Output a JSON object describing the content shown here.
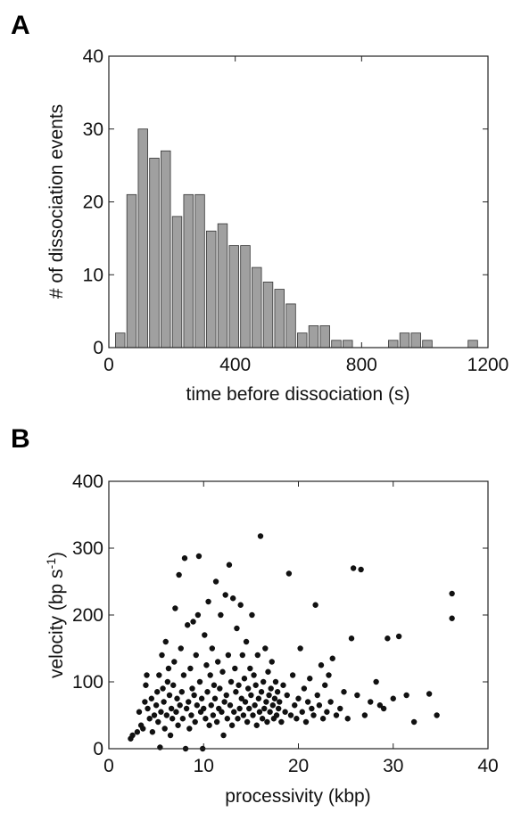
{
  "chart_data": [
    {
      "panel": "A",
      "type": "bar",
      "xlabel": "time before dissociation (s)",
      "ylabel": "# of dissociation events",
      "xlim": [
        0,
        1200
      ],
      "ylim": [
        0,
        40
      ],
      "xticks": [
        0,
        400,
        800,
        1200
      ],
      "yticks": [
        0,
        10,
        20,
        30,
        40
      ],
      "bin_width": 36,
      "bin_centers": [
        36,
        72,
        108,
        144,
        180,
        216,
        252,
        288,
        324,
        360,
        396,
        432,
        468,
        504,
        540,
        576,
        612,
        648,
        684,
        720,
        756,
        792,
        828,
        864,
        900,
        936,
        972,
        1008,
        1044,
        1080,
        1116,
        1152
      ],
      "values": [
        2,
        21,
        30,
        26,
        27,
        18,
        21,
        21,
        16,
        17,
        14,
        14,
        11,
        9,
        8,
        6,
        2,
        3,
        3,
        1,
        1,
        0,
        0,
        0,
        1,
        2,
        2,
        1,
        0,
        0,
        0,
        1
      ]
    },
    {
      "panel": "B",
      "type": "scatter",
      "xlabel": "processivity (kbp)",
      "ylabel": "velocity (bp s",
      "ylabel_sup": "-1",
      "ylabel_end": ")",
      "xlim": [
        0,
        40
      ],
      "ylim": [
        0,
        400
      ],
      "xticks": [
        0,
        10,
        20,
        30,
        40
      ],
      "yticks": [
        0,
        100,
        200,
        300,
        400
      ],
      "points": [
        [
          2.3,
          15
        ],
        [
          2.5,
          20
        ],
        [
          3,
          25
        ],
        [
          3.2,
          55
        ],
        [
          3.4,
          35
        ],
        [
          3.6,
          30
        ],
        [
          3.8,
          70
        ],
        [
          3.9,
          95
        ],
        [
          4,
          110
        ],
        [
          4.1,
          60
        ],
        [
          4.3,
          45
        ],
        [
          4.5,
          75
        ],
        [
          4.6,
          25
        ],
        [
          4.8,
          50
        ],
        [
          5,
          65
        ],
        [
          5.1,
          85
        ],
        [
          5.2,
          40
        ],
        [
          5.3,
          110
        ],
        [
          5.4,
          2
        ],
        [
          5.5,
          55
        ],
        [
          5.6,
          140
        ],
        [
          5.7,
          90
        ],
        [
          5.8,
          70
        ],
        [
          5.9,
          30
        ],
        [
          6,
          160
        ],
        [
          6.1,
          50
        ],
        [
          6.2,
          100
        ],
        [
          6.3,
          120
        ],
        [
          6.4,
          80
        ],
        [
          6.5,
          20
        ],
        [
          6.6,
          60
        ],
        [
          6.7,
          45
        ],
        [
          6.8,
          95
        ],
        [
          6.9,
          130
        ],
        [
          7,
          210
        ],
        [
          7.1,
          55
        ],
        [
          7.2,
          75
        ],
        [
          7.3,
          35
        ],
        [
          7.4,
          260
        ],
        [
          7.5,
          65
        ],
        [
          7.6,
          150
        ],
        [
          7.7,
          85
        ],
        [
          7.8,
          45
        ],
        [
          7.9,
          110
        ],
        [
          8,
          285
        ],
        [
          8.1,
          0
        ],
        [
          8.2,
          60
        ],
        [
          8.3,
          185
        ],
        [
          8.4,
          70
        ],
        [
          8.5,
          30
        ],
        [
          8.6,
          120
        ],
        [
          8.7,
          50
        ],
        [
          8.8,
          90
        ],
        [
          8.9,
          190
        ],
        [
          9,
          80
        ],
        [
          9.1,
          40
        ],
        [
          9.2,
          140
        ],
        [
          9.3,
          65
        ],
        [
          9.4,
          200
        ],
        [
          9.5,
          288
        ],
        [
          9.6,
          100
        ],
        [
          9.7,
          55
        ],
        [
          9.8,
          75
        ],
        [
          9.9,
          0
        ],
        [
          10,
          60
        ],
        [
          10.1,
          170
        ],
        [
          10.2,
          45
        ],
        [
          10.3,
          125
        ],
        [
          10.4,
          85
        ],
        [
          10.5,
          220
        ],
        [
          10.6,
          35
        ],
        [
          10.7,
          110
        ],
        [
          10.8,
          65
        ],
        [
          10.9,
          150
        ],
        [
          11,
          50
        ],
        [
          11.1,
          95
        ],
        [
          11.2,
          75
        ],
        [
          11.3,
          250
        ],
        [
          11.4,
          40
        ],
        [
          11.5,
          130
        ],
        [
          11.6,
          60
        ],
        [
          11.7,
          90
        ],
        [
          11.8,
          200
        ],
        [
          11.9,
          55
        ],
        [
          12,
          115
        ],
        [
          12.1,
          20
        ],
        [
          12.2,
          70
        ],
        [
          12.3,
          230
        ],
        [
          12.4,
          80
        ],
        [
          12.5,
          45
        ],
        [
          12.6,
          140
        ],
        [
          12.7,
          275
        ],
        [
          12.8,
          65
        ],
        [
          12.9,
          100
        ],
        [
          13,
          35
        ],
        [
          13.1,
          225
        ],
        [
          13.2,
          55
        ],
        [
          13.3,
          120
        ],
        [
          13.4,
          85
        ],
        [
          13.5,
          180
        ],
        [
          13.6,
          45
        ],
        [
          13.7,
          95
        ],
        [
          13.8,
          60
        ],
        [
          13.9,
          215
        ],
        [
          14,
          75
        ],
        [
          14.1,
          140
        ],
        [
          14.2,
          50
        ],
        [
          14.3,
          105
        ],
        [
          14.4,
          70
        ],
        [
          14.5,
          160
        ],
        [
          14.6,
          40
        ],
        [
          14.7,
          90
        ],
        [
          14.8,
          60
        ],
        [
          14.9,
          120
        ],
        [
          15,
          80
        ],
        [
          15.1,
          200
        ],
        [
          15.2,
          50
        ],
        [
          15.3,
          110
        ],
        [
          15.4,
          65
        ],
        [
          15.5,
          95
        ],
        [
          15.6,
          35
        ],
        [
          15.7,
          140
        ],
        [
          15.8,
          75
        ],
        [
          15.9,
          55
        ],
        [
          16,
          318
        ],
        [
          16.1,
          85
        ],
        [
          16.2,
          45
        ],
        [
          16.3,
          100
        ],
        [
          16.4,
          60
        ],
        [
          16.5,
          150
        ],
        [
          16.6,
          70
        ],
        [
          16.7,
          40
        ],
        [
          16.8,
          115
        ],
        [
          16.9,
          80
        ],
        [
          17,
          55
        ],
        [
          17.1,
          90
        ],
        [
          17.2,
          130
        ],
        [
          17.3,
          65
        ],
        [
          17.4,
          45
        ],
        [
          17.5,
          75
        ],
        [
          17.6,
          100
        ],
        [
          17.7,
          50
        ],
        [
          17.8,
          85
        ],
        [
          17.9,
          60
        ],
        [
          18,
          70
        ],
        [
          18.2,
          40
        ],
        [
          18.4,
          95
        ],
        [
          18.6,
          55
        ],
        [
          18.8,
          80
        ],
        [
          19,
          262
        ],
        [
          19.2,
          50
        ],
        [
          19.4,
          110
        ],
        [
          19.6,
          65
        ],
        [
          19.8,
          45
        ],
        [
          20,
          75
        ],
        [
          20.2,
          150
        ],
        [
          20.4,
          55
        ],
        [
          20.6,
          90
        ],
        [
          20.8,
          40
        ],
        [
          21,
          70
        ],
        [
          21.2,
          105
        ],
        [
          21.4,
          60
        ],
        [
          21.6,
          50
        ],
        [
          21.8,
          215
        ],
        [
          22,
          80
        ],
        [
          22.2,
          65
        ],
        [
          22.4,
          125
        ],
        [
          22.6,
          45
        ],
        [
          22.8,
          95
        ],
        [
          23,
          55
        ],
        [
          23.2,
          110
        ],
        [
          23.4,
          70
        ],
        [
          23.6,
          135
        ],
        [
          24,
          50
        ],
        [
          24.4,
          60
        ],
        [
          24.8,
          85
        ],
        [
          25.2,
          45
        ],
        [
          25.6,
          165
        ],
        [
          25.8,
          270
        ],
        [
          26.2,
          80
        ],
        [
          26.6,
          268
        ],
        [
          27,
          50
        ],
        [
          27.6,
          70
        ],
        [
          28.2,
          100
        ],
        [
          28.6,
          65
        ],
        [
          29,
          60
        ],
        [
          29.4,
          165
        ],
        [
          30,
          75
        ],
        [
          30.6,
          168
        ],
        [
          31.4,
          80
        ],
        [
          32.2,
          40
        ],
        [
          33.8,
          82
        ],
        [
          34.6,
          50
        ],
        [
          36.2,
          232
        ],
        [
          36.2,
          195
        ]
      ]
    }
  ]
}
